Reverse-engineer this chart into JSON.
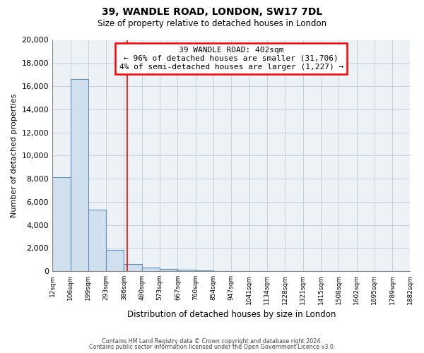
{
  "title": "39, WANDLE ROAD, LONDON, SW17 7DL",
  "subtitle": "Size of property relative to detached houses in London",
  "xlabel": "Distribution of detached houses by size in London",
  "ylabel": "Number of detached properties",
  "bin_edges": [
    12,
    106,
    199,
    293,
    386,
    480,
    573,
    667,
    760,
    854,
    947,
    1041,
    1134,
    1228,
    1321,
    1415,
    1508,
    1602,
    1695,
    1789,
    1882
  ],
  "bin_labels": [
    "12sqm",
    "106sqm",
    "199sqm",
    "293sqm",
    "386sqm",
    "480sqm",
    "573sqm",
    "667sqm",
    "760sqm",
    "854sqm",
    "947sqm",
    "1041sqm",
    "1134sqm",
    "1228sqm",
    "1321sqm",
    "1415sqm",
    "1508sqm",
    "1602sqm",
    "1695sqm",
    "1789sqm",
    "1882sqm"
  ],
  "bar_heights": [
    8100,
    16600,
    5300,
    1850,
    650,
    300,
    200,
    150,
    100,
    0,
    0,
    0,
    0,
    0,
    0,
    0,
    0,
    0,
    0,
    0
  ],
  "bar_color": "#d0e0ee",
  "bar_edge_color": "#6090b8",
  "property_line_x": 402,
  "property_line_color": "red",
  "annotation_title": "39 WANDLE ROAD: 402sqm",
  "annotation_line1": "← 96% of detached houses are smaller (31,706)",
  "annotation_line2": "4% of semi-detached houses are larger (1,227) →",
  "annotation_box_color": "white",
  "annotation_box_edge_color": "red",
  "ylim": [
    0,
    20000
  ],
  "yticks": [
    0,
    2000,
    4000,
    6000,
    8000,
    10000,
    12000,
    14000,
    16000,
    18000,
    20000
  ],
  "footer1": "Contains HM Land Registry data © Crown copyright and database right 2024.",
  "footer2": "Contains public sector information licensed under the Open Government Licence v3.0.",
  "background_color": "#edf2f7",
  "grid_color": "#c5d0dc"
}
